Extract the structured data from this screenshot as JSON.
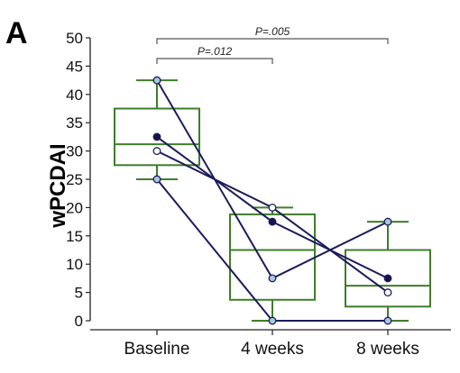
{
  "chart_data": {
    "type": "box",
    "panel_label": "A",
    "ylabel": "wPCDAI",
    "ylim": [
      0,
      50
    ],
    "yticks": [
      0,
      5,
      10,
      15,
      20,
      25,
      30,
      35,
      40,
      45,
      50
    ],
    "categories": [
      "Baseline",
      "4 weeks",
      "8 weeks"
    ],
    "boxes": [
      {
        "category": "Baseline",
        "whisker_low": 25,
        "q1": 27.5,
        "median": 31.2,
        "q3": 37.5,
        "whisker_high": 42.5
      },
      {
        "category": "4 weeks",
        "whisker_low": 0,
        "q1": 3.7,
        "median": 12.5,
        "q3": 18.8,
        "whisker_high": 20
      },
      {
        "category": "8 weeks",
        "whisker_low": 0,
        "q1": 2.5,
        "median": 6.2,
        "q3": 12.5,
        "whisker_high": 17.5
      }
    ],
    "series": [
      {
        "values": [
          42.5,
          7.5,
          17.5
        ],
        "marker": "lightblue"
      },
      {
        "values": [
          32.5,
          17.5,
          7.5
        ],
        "marker": "dark"
      },
      {
        "values": [
          30,
          20,
          5
        ],
        "marker": "white"
      },
      {
        "values": [
          25,
          0,
          0
        ],
        "marker": "lightblue"
      }
    ],
    "annotations": [
      {
        "from": "Baseline",
        "to": "4 weeks",
        "text": "P=.012"
      },
      {
        "from": "Baseline",
        "to": "8 weeks",
        "text": "P=.005"
      }
    ],
    "colors": {
      "box": "#3f7d2a",
      "line": "#1c1c5a",
      "marker_dark": "#14144a",
      "marker_light": "#a9c6df",
      "marker_white": "#ffffff",
      "bracket": "#555555"
    }
  }
}
